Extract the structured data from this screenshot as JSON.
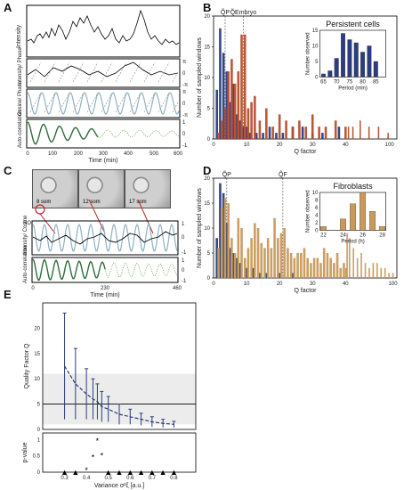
{
  "panels": {
    "A": "A",
    "B": "B",
    "C": "C",
    "D": "D",
    "E": "E"
  },
  "panelA": {
    "row_labels": [
      "Intensity",
      "Intensity/ Phase",
      "Cosine/ Phase",
      "Auto-correlation"
    ],
    "xlabel": "Time (min)",
    "xticks": [
      "0",
      "100",
      "200",
      "300",
      "400",
      "500",
      "600"
    ],
    "right_ticks_phase": [
      "π",
      "0",
      "-π"
    ],
    "right_ticks_ac": [
      "1",
      "0",
      "-1"
    ]
  },
  "panelC": {
    "photos": [
      "8 som",
      "12 som",
      "17 som"
    ],
    "roi_label": "ROI",
    "row_labels": [
      "Intensity/ Cosine",
      "Auto-correlation"
    ],
    "xlabel": "Time (min)",
    "xticks": [
      "0",
      "230",
      "460"
    ],
    "right_ticks": [
      "1",
      "0",
      "-1"
    ]
  },
  "chart_data": [
    {
      "id": "B",
      "type": "bar",
      "title": "",
      "xlabel": "Q factor",
      "ylabel": "Number of sampled windows",
      "xlim": [
        0,
        110
      ],
      "ylim": [
        0,
        20
      ],
      "xticks": [
        0,
        10,
        20,
        30,
        40,
        100
      ],
      "yticks": [
        0,
        5,
        10,
        15,
        20
      ],
      "markers": [
        {
          "label": "Q̃P",
          "x": 3.5
        },
        {
          "label": "Q̃Embryo",
          "x": 9
        }
      ],
      "series": [
        {
          "color": "#2b3d7e",
          "x": [
            1,
            2,
            3,
            4,
            5,
            6,
            7,
            8,
            9,
            10,
            11,
            13,
            15,
            17,
            19,
            21,
            24,
            27,
            30,
            33,
            38
          ],
          "values": [
            8,
            18,
            14,
            11,
            6,
            9,
            4,
            3,
            2,
            2,
            1,
            1,
            1,
            2,
            1,
            1,
            2,
            2,
            1,
            1,
            2
          ]
        },
        {
          "color": "#b5502e",
          "x": [
            1.5,
            2.5,
            3.5,
            4.5,
            5.5,
            6.5,
            7.5,
            8.5,
            9.5,
            10.5,
            11.5,
            12.5,
            14,
            16,
            18,
            20,
            22,
            24,
            26,
            28,
            30,
            32,
            34,
            37,
            40,
            44,
            50,
            60,
            72,
            85,
            98
          ],
          "values": [
            1,
            3,
            5,
            11,
            13,
            9,
            11,
            17,
            17,
            5,
            6,
            7,
            3,
            5,
            2,
            4,
            3,
            2,
            3,
            2,
            4,
            2,
            2,
            3,
            2,
            2,
            2,
            3,
            2,
            2,
            1
          ]
        }
      ],
      "inset": {
        "title": "Persistent cells",
        "type": "bar",
        "xlabel": "Period (min)",
        "ylabel": "Number observed",
        "categories": [
          65,
          67.5,
          70,
          72.5,
          75,
          77.5,
          80,
          82.5,
          85,
          87.5
        ],
        "values": [
          1,
          2,
          6,
          14,
          12,
          11,
          8,
          10,
          5,
          0
        ],
        "ylim": [
          0,
          15
        ],
        "xticks": [
          65,
          70,
          75,
          80,
          85
        ],
        "yticks": [
          0,
          5,
          10,
          15
        ],
        "color": "#2b3d7e"
      }
    },
    {
      "id": "D",
      "type": "bar",
      "title": "",
      "xlabel": "Q factor",
      "ylabel": "Number of sampled windows",
      "xlim": [
        0,
        105
      ],
      "ylim": [
        0,
        20
      ],
      "xticks": [
        0,
        10,
        20,
        30,
        40,
        100
      ],
      "yticks": [
        0,
        5,
        10,
        15,
        20
      ],
      "markers": [
        {
          "label": "Q̃P",
          "x": 4
        },
        {
          "label": "Q̃F",
          "x": 21
        }
      ],
      "series": [
        {
          "color": "#2b3d7e",
          "x": [
            1,
            2,
            3,
            4,
            5,
            6,
            7,
            8,
            10,
            12,
            14,
            16,
            20,
            24
          ],
          "values": [
            8,
            19,
            17,
            11,
            6,
            5,
            4,
            3,
            2,
            2,
            1,
            1,
            1,
            1
          ]
        },
        {
          "color": "#c9995a",
          "x": [
            1.5,
            2.5,
            3.5,
            4.5,
            5.5,
            6.5,
            7.5,
            8.5,
            9.5,
            10.5,
            11.5,
            12.5,
            13.5,
            14.5,
            15.5,
            16.5,
            17.5,
            18.5,
            19.5,
            20.5,
            21.5,
            22.5,
            23.5,
            24.5,
            25.5,
            26.5,
            27.5,
            28.5,
            29.5,
            30.5,
            31.5,
            32.5,
            33.5,
            34.5,
            35.5,
            36.5,
            37.5,
            38.5,
            39.5,
            40.5,
            42,
            45,
            50,
            55,
            60,
            65,
            70,
            75,
            80,
            85,
            90,
            95,
            100
          ],
          "values": [
            6,
            14,
            16,
            15,
            8,
            5,
            12,
            10,
            4,
            6,
            8,
            11,
            10,
            7,
            6,
            8,
            6,
            12,
            8,
            9,
            10,
            6,
            5,
            4,
            5,
            5,
            6,
            4,
            3,
            4,
            4,
            3,
            6,
            5,
            4,
            3,
            5,
            2,
            3,
            2,
            9,
            8,
            6,
            4,
            5,
            3,
            2,
            3,
            3,
            2,
            2,
            1,
            1
          ]
        }
      ],
      "inset": {
        "title": "Fibroblasts",
        "type": "bar",
        "xlabel": "Period (h)",
        "ylabel": "Number observed",
        "categories": [
          22,
          23,
          24,
          25,
          26,
          27,
          28
        ],
        "values": [
          1,
          0,
          3,
          7,
          10,
          5,
          1
        ],
        "ylim": [
          0,
          10
        ],
        "xticks": [
          22,
          24,
          26,
          28
        ],
        "yticks": [
          0,
          2,
          4,
          6,
          8,
          10
        ],
        "color": "#c9995a"
      }
    },
    {
      "id": "E",
      "type": "scatter",
      "xlabel": "Variance σ²ξ [a.u.]",
      "ylabel": "Quality Factor Q",
      "xlim": [
        0.2,
        0.9
      ],
      "ylim": [
        0,
        25
      ],
      "xticks": [
        0.3,
        0.4,
        0.5,
        0.6,
        0.7,
        0.8
      ],
      "yticks": [
        0,
        5,
        10,
        15,
        20
      ],
      "band": [
        1,
        11
      ],
      "hline": 5,
      "x": [
        0.3,
        0.35,
        0.4,
        0.43,
        0.45,
        0.47,
        0.5,
        0.55,
        0.6,
        0.65,
        0.7,
        0.75,
        0.8
      ],
      "y": [
        12.5,
        9,
        7,
        6,
        5.5,
        4.5,
        4,
        3,
        2.5,
        2,
        1.5,
        1.2,
        1
      ],
      "err": [
        10.5,
        7,
        5,
        4,
        3.5,
        3,
        2.5,
        2,
        1.5,
        1.2,
        1,
        0.8,
        0.6
      ],
      "color": "#2b3d7e",
      "pvalue": {
        "ylabel": "p-value",
        "ylim": [
          0,
          1.2
        ],
        "yticks": [
          0,
          0.5,
          1
        ],
        "x": [
          0.3,
          0.35,
          0.4,
          0.43,
          0.45,
          0.47,
          0.5,
          0.55,
          0.6,
          0.65,
          0.7,
          0.75,
          0.8
        ],
        "y": [
          0,
          0,
          0.05,
          0.45,
          0.95,
          0.5,
          0,
          0,
          0,
          0,
          0,
          0,
          0
        ]
      }
    }
  ]
}
